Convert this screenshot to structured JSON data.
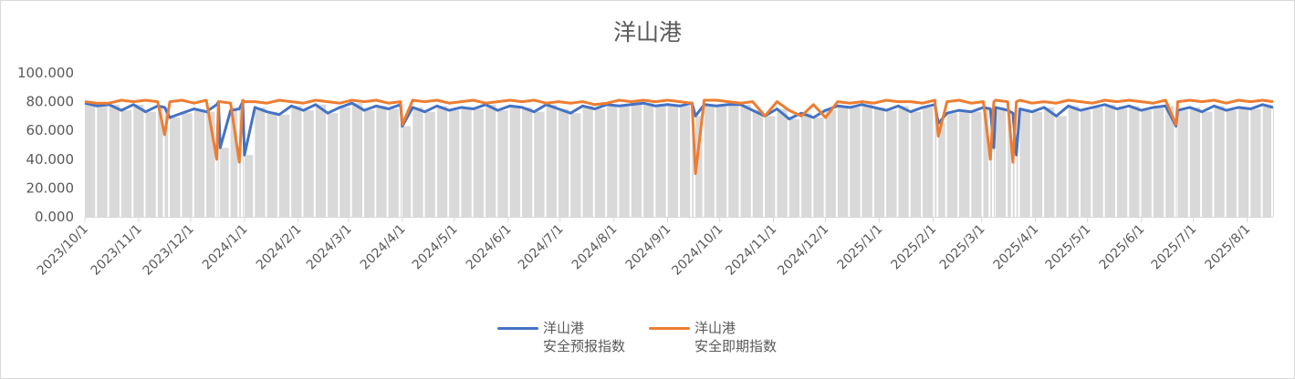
{
  "chart_data": {
    "type": "line",
    "title": "洋山港",
    "ylim": [
      0,
      100
    ],
    "yticks": [
      "0.000",
      "20.000",
      "40.000",
      "60.000",
      "80.000",
      "100.000"
    ],
    "xlim": [
      "2023-10-01",
      "2025-08-16"
    ],
    "xticks": [
      "2023/10/1",
      "2023/11/1",
      "2023/12/1",
      "2024/1/1",
      "2024/2/1",
      "2024/3/1",
      "2024/4/1",
      "2024/5/1",
      "2024/6/1",
      "2024/7/1",
      "2024/8/1",
      "2024/9/1",
      "2024/10/1",
      "2024/11/1",
      "2024/12/1",
      "2025/1/1",
      "2025/2/1",
      "2025/3/1",
      "2025/4/1",
      "2025/5/1",
      "2025/6/1",
      "2025/7/1",
      "2025/8/1"
    ],
    "grid": false,
    "legend_position": "bottom",
    "background_columns": "gray columns under series 1",
    "series": [
      {
        "name": "洋山港\n安全预报指数",
        "name_line1": "洋山港",
        "name_line2": "安全预报指数",
        "color": "#4472c4"
      },
      {
        "name": "洋山港\n安全即期指数",
        "name_line1": "洋山港",
        "name_line2": "安全即期指数",
        "color": "#ed7d31"
      }
    ],
    "columns": [
      "date",
      "安全预报指数",
      "安全即期指数"
    ],
    "points": [
      [
        "2023-10-01",
        79,
        80
      ],
      [
        "2023-10-08",
        77,
        79
      ],
      [
        "2023-10-15",
        78,
        79
      ],
      [
        "2023-10-22",
        74,
        81
      ],
      [
        "2023-10-29",
        78,
        80
      ],
      [
        "2023-11-05",
        73,
        81
      ],
      [
        "2023-11-12",
        77,
        80
      ],
      [
        "2023-11-16",
        76,
        57
      ],
      [
        "2023-11-19",
        69,
        80
      ],
      [
        "2023-11-26",
        72,
        81
      ],
      [
        "2023-12-03",
        75,
        79
      ],
      [
        "2023-12-10",
        73,
        81
      ],
      [
        "2023-12-16",
        78,
        40
      ],
      [
        "2023-12-17",
        80,
        80
      ],
      [
        "2023-12-18",
        48,
        80
      ],
      [
        "2023-12-24",
        74,
        79
      ],
      [
        "2023-12-29",
        75,
        38
      ],
      [
        "2023-12-31",
        80,
        81
      ],
      [
        "2024-01-01",
        43,
        80
      ],
      [
        "2024-01-07",
        76,
        80
      ],
      [
        "2024-01-14",
        73,
        79
      ],
      [
        "2024-01-21",
        71,
        81
      ],
      [
        "2024-01-28",
        77,
        80
      ],
      [
        "2024-02-04",
        74,
        79
      ],
      [
        "2024-02-11",
        78,
        81
      ],
      [
        "2024-02-18",
        72,
        80
      ],
      [
        "2024-02-25",
        76,
        79
      ],
      [
        "2024-03-03",
        79,
        81
      ],
      [
        "2024-03-10",
        74,
        80
      ],
      [
        "2024-03-17",
        77,
        81
      ],
      [
        "2024-03-24",
        75,
        79
      ],
      [
        "2024-03-31",
        78,
        80
      ],
      [
        "2024-04-01",
        63,
        64
      ],
      [
        "2024-04-07",
        76,
        81
      ],
      [
        "2024-04-14",
        73,
        80
      ],
      [
        "2024-04-21",
        77,
        81
      ],
      [
        "2024-04-28",
        74,
        79
      ],
      [
        "2024-05-05",
        76,
        80
      ],
      [
        "2024-05-12",
        75,
        81
      ],
      [
        "2024-05-19",
        78,
        79
      ],
      [
        "2024-05-26",
        74,
        80
      ],
      [
        "2024-06-02",
        77,
        81
      ],
      [
        "2024-06-09",
        76,
        80
      ],
      [
        "2024-06-16",
        73,
        81
      ],
      [
        "2024-06-23",
        78,
        79
      ],
      [
        "2024-06-30",
        75,
        80
      ],
      [
        "2024-07-07",
        72,
        79
      ],
      [
        "2024-07-14",
        77,
        80
      ],
      [
        "2024-07-21",
        75,
        78
      ],
      [
        "2024-07-28",
        78,
        79
      ],
      [
        "2024-08-04",
        77,
        81
      ],
      [
        "2024-08-11",
        78,
        80
      ],
      [
        "2024-08-18",
        79,
        81
      ],
      [
        "2024-08-25",
        77,
        80
      ],
      [
        "2024-09-01",
        78,
        81
      ],
      [
        "2024-09-08",
        77,
        80
      ],
      [
        "2024-09-15",
        79,
        79
      ],
      [
        "2024-09-17",
        70,
        30
      ],
      [
        "2024-09-22",
        78,
        81
      ],
      [
        "2024-09-29",
        77,
        81
      ],
      [
        "2024-10-06",
        78,
        80
      ],
      [
        "2024-10-13",
        78,
        79
      ],
      [
        "2024-10-20",
        74,
        80
      ],
      [
        "2024-10-27",
        70,
        70
      ],
      [
        "2024-11-03",
        75,
        80
      ],
      [
        "2024-11-10",
        68,
        74
      ],
      [
        "2024-11-17",
        72,
        70
      ],
      [
        "2024-11-24",
        69,
        78
      ],
      [
        "2024-12-01",
        74,
        69
      ],
      [
        "2024-12-08",
        77,
        80
      ],
      [
        "2024-12-15",
        76,
        79
      ],
      [
        "2024-12-22",
        78,
        80
      ],
      [
        "2024-12-29",
        76,
        79
      ],
      [
        "2025-01-05",
        74,
        81
      ],
      [
        "2025-01-12",
        77,
        80
      ],
      [
        "2025-01-19",
        73,
        80
      ],
      [
        "2025-01-26",
        76,
        79
      ],
      [
        "2025-02-02",
        78,
        81
      ],
      [
        "2025-02-04",
        65,
        56
      ],
      [
        "2025-02-09",
        72,
        80
      ],
      [
        "2025-02-16",
        74,
        81
      ],
      [
        "2025-02-23",
        73,
        79
      ],
      [
        "2025-03-02",
        76,
        80
      ],
      [
        "2025-03-06",
        75,
        40
      ],
      [
        "2025-03-08",
        48,
        80
      ],
      [
        "2025-03-09",
        76,
        81
      ],
      [
        "2025-03-16",
        74,
        80
      ],
      [
        "2025-03-19",
        72,
        38
      ],
      [
        "2025-03-21",
        43,
        80
      ],
      [
        "2025-03-23",
        75,
        81
      ],
      [
        "2025-03-30",
        73,
        79
      ],
      [
        "2025-04-06",
        76,
        80
      ],
      [
        "2025-04-13",
        70,
        79
      ],
      [
        "2025-04-20",
        77,
        81
      ],
      [
        "2025-04-27",
        74,
        80
      ],
      [
        "2025-05-04",
        76,
        79
      ],
      [
        "2025-05-11",
        78,
        81
      ],
      [
        "2025-05-18",
        75,
        80
      ],
      [
        "2025-05-25",
        77,
        81
      ],
      [
        "2025-06-01",
        74,
        80
      ],
      [
        "2025-06-08",
        76,
        79
      ],
      [
        "2025-06-15",
        77,
        81
      ],
      [
        "2025-06-21",
        63,
        64
      ],
      [
        "2025-06-22",
        74,
        80
      ],
      [
        "2025-06-29",
        76,
        81
      ],
      [
        "2025-07-06",
        73,
        80
      ],
      [
        "2025-07-13",
        77,
        81
      ],
      [
        "2025-07-20",
        74,
        79
      ],
      [
        "2025-07-27",
        76,
        81
      ],
      [
        "2025-08-03",
        75,
        80
      ],
      [
        "2025-08-10",
        78,
        81
      ],
      [
        "2025-08-16",
        76,
        80
      ]
    ]
  }
}
